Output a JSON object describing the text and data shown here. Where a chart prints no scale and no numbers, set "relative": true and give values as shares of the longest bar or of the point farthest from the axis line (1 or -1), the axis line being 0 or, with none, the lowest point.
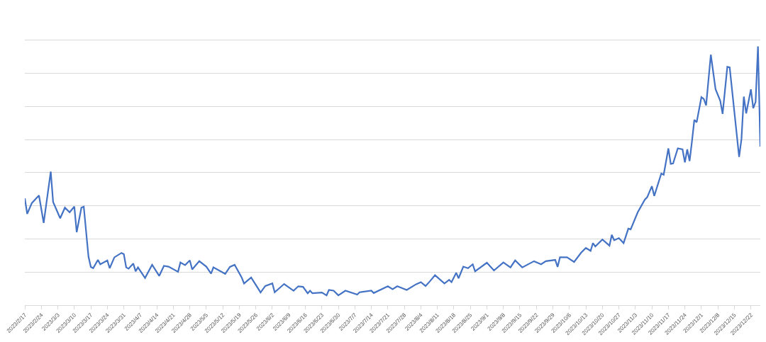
{
  "chart_data": {
    "type": "line",
    "relative": true,
    "grid": "y",
    "xlim": [
      "2023-02-17",
      "2023-12-26"
    ],
    "xticks": [
      {
        "value": "2023-02-17",
        "label": "2023/2/17"
      },
      {
        "value": "2023-02-24",
        "label": "2023/2/24"
      },
      {
        "value": "2023-03-03",
        "label": "2023/3/3"
      },
      {
        "value": "2023-03-10",
        "label": "2023/3/10"
      },
      {
        "value": "2023-03-17",
        "label": "2023/3/17"
      },
      {
        "value": "2023-03-24",
        "label": "2023/3/24"
      },
      {
        "value": "2023-03-31",
        "label": "2023/3/31"
      },
      {
        "value": "2023-04-07",
        "label": "2023/4/7"
      },
      {
        "value": "2023-04-14",
        "label": "2023/4/14"
      },
      {
        "value": "2023-04-21",
        "label": "2023/4/21"
      },
      {
        "value": "2023-04-28",
        "label": "2023/4/28"
      },
      {
        "value": "2023-05-05",
        "label": "2023/5/5"
      },
      {
        "value": "2023-05-12",
        "label": "2023/5/12"
      },
      {
        "value": "2023-05-19",
        "label": "2023/5/19"
      },
      {
        "value": "2023-05-26",
        "label": "2023/5/26"
      },
      {
        "value": "2023-06-02",
        "label": "2023/6/2"
      },
      {
        "value": "2023-06-09",
        "label": "2023/6/9"
      },
      {
        "value": "2023-06-16",
        "label": "2023/6/16"
      },
      {
        "value": "2023-06-23",
        "label": "2023/6/23"
      },
      {
        "value": "2023-06-30",
        "label": "2023/6/30"
      },
      {
        "value": "2023-07-07",
        "label": "2023/7/7"
      },
      {
        "value": "2023-07-14",
        "label": "2023/7/14"
      },
      {
        "value": "2023-07-21",
        "label": "2023/7/21"
      },
      {
        "value": "2023-07-28",
        "label": "2023/7/28"
      },
      {
        "value": "2023-08-04",
        "label": "2023/8/4"
      },
      {
        "value": "2023-08-11",
        "label": "2023/8/11"
      },
      {
        "value": "2023-08-18",
        "label": "2023/8/18"
      },
      {
        "value": "2023-08-25",
        "label": "2023/8/25"
      },
      {
        "value": "2023-09-01",
        "label": "2023/9/1"
      },
      {
        "value": "2023-09-08",
        "label": "2023/9/8"
      },
      {
        "value": "2023-09-15",
        "label": "2023/9/15"
      },
      {
        "value": "2023-09-22",
        "label": "2023/9/22"
      },
      {
        "value": "2023-09-29",
        "label": "2023/9/29"
      },
      {
        "value": "2023-10-06",
        "label": "2023/10/6"
      },
      {
        "value": "2023-10-13",
        "label": "2023/10/13"
      },
      {
        "value": "2023-10-20",
        "label": "2023/10/20"
      },
      {
        "value": "2023-10-27",
        "label": "2023/10/27"
      },
      {
        "value": "2023-11-03",
        "label": "2023/11/3"
      },
      {
        "value": "2023-11-10",
        "label": "2023/11/10"
      },
      {
        "value": "2023-11-17",
        "label": "2023/11/17"
      },
      {
        "value": "2023-11-24",
        "label": "2023/11/24"
      },
      {
        "value": "2023-12-01",
        "label": "2023/12/1"
      },
      {
        "value": "2023-12-08",
        "label": "2023/12/8"
      },
      {
        "value": "2023-12-15",
        "label": "2023/12/15"
      },
      {
        "value": "2023-12-22",
        "label": "2023/12/22"
      }
    ],
    "x": [
      "2023-02-17",
      "2023-02-18",
      "2023-02-20",
      "2023-02-23",
      "2023-02-25",
      "2023-02-28",
      "2023-03-01",
      "2023-03-04",
      "2023-03-06",
      "2023-03-08",
      "2023-03-10",
      "2023-03-11",
      "2023-03-13",
      "2023-03-14",
      "2023-03-16",
      "2023-03-17",
      "2023-03-18",
      "2023-03-20",
      "2023-03-21",
      "2023-03-24",
      "2023-03-25",
      "2023-03-27",
      "2023-03-30",
      "2023-03-31",
      "2023-04-01",
      "2023-04-02",
      "2023-04-04",
      "2023-04-05",
      "2023-04-06",
      "2023-04-09",
      "2023-04-12",
      "2023-04-15",
      "2023-04-17",
      "2023-04-19",
      "2023-04-23",
      "2023-04-24",
      "2023-04-26",
      "2023-04-28",
      "2023-04-29",
      "2023-05-02",
      "2023-05-05",
      "2023-05-07",
      "2023-05-08",
      "2023-05-13",
      "2023-05-15",
      "2023-05-17",
      "2023-05-20",
      "2023-05-21",
      "2023-05-24",
      "2023-05-27",
      "2023-05-28",
      "2023-05-30",
      "2023-06-02",
      "2023-06-03",
      "2023-06-07",
      "2023-06-11",
      "2023-06-13",
      "2023-06-15",
      "2023-06-17",
      "2023-06-18",
      "2023-06-19",
      "2023-06-23",
      "2023-06-25",
      "2023-06-26",
      "2023-06-28",
      "2023-06-30",
      "2023-07-03",
      "2023-07-08",
      "2023-07-09",
      "2023-07-14",
      "2023-07-15",
      "2023-07-21",
      "2023-07-23",
      "2023-07-25",
      "2023-07-29",
      "2023-08-02",
      "2023-08-04",
      "2023-08-06",
      "2023-08-08",
      "2023-08-10",
      "2023-08-14",
      "2023-08-16",
      "2023-08-17",
      "2023-08-19",
      "2023-08-20",
      "2023-08-22",
      "2023-08-24",
      "2023-08-26",
      "2023-08-27",
      "2023-09-01",
      "2023-09-04",
      "2023-09-08",
      "2023-09-11",
      "2023-09-13",
      "2023-09-16",
      "2023-09-21",
      "2023-09-24",
      "2023-09-26",
      "2023-09-30",
      "2023-10-01",
      "2023-10-02",
      "2023-10-05",
      "2023-10-08",
      "2023-10-11",
      "2023-10-13",
      "2023-10-15",
      "2023-10-16",
      "2023-10-17",
      "2023-10-20",
      "2023-10-23",
      "2023-10-24",
      "2023-10-25",
      "2023-10-27",
      "2023-10-29",
      "2023-10-31",
      "2023-11-01",
      "2023-11-04",
      "2023-11-07",
      "2023-11-08",
      "2023-11-10",
      "2023-11-11",
      "2023-11-14",
      "2023-11-15",
      "2023-11-17",
      "2023-11-18",
      "2023-11-19",
      "2023-11-21",
      "2023-11-23",
      "2023-11-24",
      "2023-11-25",
      "2023-11-26",
      "2023-11-27",
      "2023-11-28",
      "2023-11-29",
      "2023-12-01",
      "2023-12-02",
      "2023-12-03",
      "2023-12-05",
      "2023-12-07",
      "2023-12-09",
      "2023-12-10",
      "2023-12-12",
      "2023-12-13",
      "2023-12-17",
      "2023-12-18",
      "2023-12-19",
      "2023-12-20",
      "2023-12-22",
      "2023-12-23",
      "2023-12-24",
      "2023-12-25",
      "2023-12-26"
    ],
    "series": [
      {
        "color": "#4472c4",
        "values": [
          0.413,
          0.353,
          0.395,
          0.424,
          0.318,
          0.516,
          0.399,
          0.336,
          0.377,
          0.359,
          0.381,
          0.282,
          0.377,
          0.381,
          0.188,
          0.148,
          0.143,
          0.175,
          0.158,
          0.173,
          0.143,
          0.185,
          0.202,
          0.197,
          0.146,
          0.141,
          0.161,
          0.131,
          0.146,
          0.105,
          0.156,
          0.113,
          0.152,
          0.149,
          0.129,
          0.165,
          0.155,
          0.173,
          0.138,
          0.17,
          0.149,
          0.122,
          0.146,
          0.121,
          0.148,
          0.156,
          0.107,
          0.084,
          0.107,
          0.064,
          0.049,
          0.074,
          0.084,
          0.05,
          0.082,
          0.056,
          0.073,
          0.071,
          0.046,
          0.056,
          0.046,
          0.049,
          0.038,
          0.059,
          0.056,
          0.038,
          0.056,
          0.041,
          0.05,
          0.056,
          0.047,
          0.073,
          0.062,
          0.073,
          0.059,
          0.081,
          0.089,
          0.074,
          0.094,
          0.116,
          0.084,
          0.098,
          0.089,
          0.125,
          0.104,
          0.149,
          0.143,
          0.158,
          0.131,
          0.164,
          0.134,
          0.165,
          0.146,
          0.173,
          0.146,
          0.17,
          0.158,
          0.17,
          0.175,
          0.148,
          0.185,
          0.185,
          0.167,
          0.203,
          0.221,
          0.21,
          0.24,
          0.227,
          0.254,
          0.23,
          0.272,
          0.251,
          0.259,
          0.24,
          0.296,
          0.293,
          0.359,
          0.408,
          0.417,
          0.46,
          0.422,
          0.509,
          0.504,
          0.606,
          0.546,
          0.548,
          0.606,
          0.602,
          0.552,
          0.602,
          0.557,
          0.633,
          0.716,
          0.707,
          0.804,
          0.797,
          0.772,
          0.968,
          0.835,
          0.79,
          0.739,
          0.921,
          0.919,
          0.573,
          0.642,
          0.806,
          0.741,
          0.834,
          0.761,
          0.786,
          1.0,
          0.613
        ]
      }
    ]
  }
}
